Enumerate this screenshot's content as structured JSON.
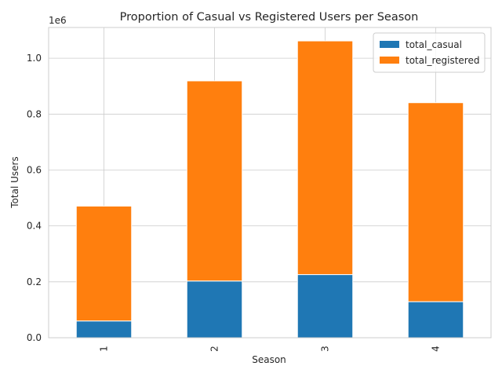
{
  "chart_data": {
    "type": "bar",
    "stacked": true,
    "title": "Proportion of Casual vs Registered Users per Season",
    "xlabel": "Season",
    "ylabel": "Total Users",
    "y_offset_label": "1e6",
    "categories": [
      "1",
      "2",
      "3",
      "4"
    ],
    "ylim": [
      0,
      1.11
    ],
    "yticks": [
      "0.0",
      "0.2",
      "0.4",
      "0.6",
      "0.8",
      "1.0"
    ],
    "grid": true,
    "legend_position": "top-right",
    "series": [
      {
        "name": "total_casual",
        "color": "#1f77b4",
        "values": [
          0.06,
          0.203,
          0.226,
          0.129
        ]
      },
      {
        "name": "total_registered",
        "color": "#ff7f0e",
        "values": [
          0.411,
          0.716,
          0.836,
          0.712
        ]
      }
    ]
  }
}
